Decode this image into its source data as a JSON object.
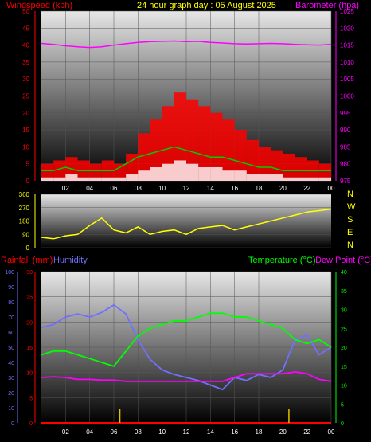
{
  "header": {
    "windspeed_label": "Windspeed (kph)",
    "title": "24 hour graph day : 05 August 2025",
    "barometer_label": "Barometer (hpa)"
  },
  "lower_header": {
    "rainfall_label": "Rainfall (mm)",
    "humidity_label": "Humidity",
    "temperature_label": "Temperature (°C)",
    "dewpoint_label": "Dew Point (°C)"
  },
  "colors": {
    "windspeed": "#ff0000",
    "gust": "#ff0000",
    "wind_avg": "#00cc00",
    "wind_min": "#ffffff",
    "barometer": "#ff00ff",
    "direction": "#ffff00",
    "rainfall": "#ff0000",
    "humidity": "#7070ff",
    "temperature": "#00ff00",
    "dewpoint": "#ff00ff",
    "rain_ticks": "#e0c000"
  },
  "chart_data": [
    {
      "type": "line",
      "name": "wind-barometer",
      "x_ticks": [
        "02",
        "04",
        "06",
        "08",
        "10",
        "12",
        "14",
        "16",
        "18",
        "20",
        "22",
        "00"
      ],
      "y_left": {
        "label": "Windspeed (kph)",
        "ticks": [
          0,
          5,
          10,
          15,
          20,
          25,
          30,
          35,
          40,
          45,
          50
        ],
        "range": [
          0,
          50
        ]
      },
      "y_right": {
        "label": "Barometer (hpa)",
        "ticks": [
          975,
          980,
          985,
          990,
          995,
          1000,
          1005,
          1010,
          1015,
          1020,
          1025
        ],
        "range": [
          975,
          1025
        ]
      },
      "x_hours": [
        0,
        1,
        2,
        3,
        4,
        5,
        6,
        7,
        8,
        9,
        10,
        11,
        12,
        13,
        14,
        15,
        16,
        17,
        18,
        19,
        20,
        21,
        22,
        23,
        24
      ],
      "gust_kph": [
        5,
        6,
        7,
        6,
        5,
        6,
        5,
        8,
        14,
        18,
        22,
        26,
        24,
        22,
        20,
        18,
        15,
        12,
        10,
        9,
        8,
        7,
        6,
        5,
        5
      ],
      "wind_avg_kph": [
        3,
        3,
        4,
        3,
        3,
        3,
        3,
        5,
        7,
        8,
        9,
        10,
        9,
        8,
        7,
        7,
        6,
        5,
        4,
        4,
        3,
        3,
        3,
        3,
        3
      ],
      "wind_min_kph": [
        1,
        1,
        2,
        1,
        1,
        1,
        1,
        2,
        3,
        4,
        5,
        6,
        5,
        4,
        4,
        3,
        3,
        2,
        2,
        2,
        1,
        1,
        1,
        1,
        1
      ],
      "barometer_hpa": [
        1015.5,
        1015.2,
        1014.8,
        1014.5,
        1014.3,
        1014.5,
        1015.0,
        1015.4,
        1015.8,
        1016.0,
        1016.1,
        1016.2,
        1016.0,
        1016.1,
        1015.8,
        1015.6,
        1015.4,
        1015.3,
        1015.4,
        1015.5,
        1015.4,
        1015.2,
        1015.1,
        1015.0,
        1015.2
      ]
    },
    {
      "type": "line",
      "name": "wind-direction",
      "x_ticks": [],
      "y_left": {
        "ticks": [
          0,
          90,
          180,
          270,
          360
        ],
        "range": [
          0,
          360
        ]
      },
      "y_right": {
        "ticks": [
          "N",
          "W",
          "S",
          "E",
          "N"
        ]
      },
      "x_hours": [
        0,
        1,
        2,
        3,
        4,
        5,
        6,
        7,
        8,
        9,
        10,
        11,
        12,
        13,
        14,
        15,
        16,
        17,
        18,
        19,
        20,
        21,
        22,
        23,
        24
      ],
      "direction_deg": [
        70,
        60,
        80,
        90,
        150,
        200,
        120,
        100,
        140,
        90,
        110,
        120,
        90,
        130,
        140,
        150,
        120,
        140,
        160,
        180,
        200,
        220,
        240,
        250,
        260
      ]
    },
    {
      "type": "line",
      "name": "rain-humidity-temperature",
      "x_ticks": [
        "02",
        "04",
        "06",
        "08",
        "10",
        "12",
        "14",
        "16",
        "18",
        "20",
        "22",
        "00"
      ],
      "y_humidity": {
        "label": "Humidity",
        "ticks": [
          0,
          10,
          20,
          30,
          40,
          50,
          60,
          70,
          80,
          90,
          100
        ],
        "range": [
          0,
          100
        ]
      },
      "y_rain": {
        "label": "Rainfall (mm)",
        "ticks": [
          0,
          5,
          10,
          15,
          20,
          25,
          30
        ],
        "range": [
          0,
          30
        ]
      },
      "y_temp": {
        "label": "Temperature (°C)",
        "ticks": [
          0,
          5,
          10,
          15,
          20,
          25,
          30,
          35,
          40
        ],
        "range": [
          0,
          40
        ]
      },
      "x_hours": [
        0,
        1,
        2,
        3,
        4,
        5,
        6,
        7,
        8,
        9,
        10,
        11,
        12,
        13,
        14,
        15,
        16,
        17,
        18,
        19,
        20,
        21,
        22,
        23,
        24
      ],
      "humidity_pct": [
        63,
        65,
        70,
        72,
        70,
        73,
        78,
        72,
        55,
        42,
        35,
        32,
        30,
        28,
        25,
        22,
        30,
        28,
        32,
        30,
        35,
        55,
        58,
        45,
        50
      ],
      "temperature_c": [
        18,
        19,
        19,
        18,
        17,
        16,
        15,
        19,
        23,
        25,
        26,
        27,
        27,
        28,
        29,
        29,
        28,
        28,
        27,
        26,
        25,
        22,
        21,
        22,
        20
      ],
      "dewpoint_c": [
        12,
        12.2,
        12,
        11.5,
        11.5,
        11.3,
        11.3,
        11,
        11,
        11,
        11,
        11,
        11,
        11,
        11,
        11,
        12,
        13,
        13,
        13,
        13,
        13.5,
        13,
        11.5,
        11
      ],
      "rainfall_mm": [
        0,
        0,
        0,
        0,
        0,
        0,
        0,
        0,
        0,
        0,
        0,
        0,
        0,
        0,
        0,
        0,
        0,
        0,
        0,
        0,
        0,
        0,
        0,
        0,
        0
      ],
      "rain_tick_hours": [
        6.5,
        20.5
      ]
    }
  ]
}
